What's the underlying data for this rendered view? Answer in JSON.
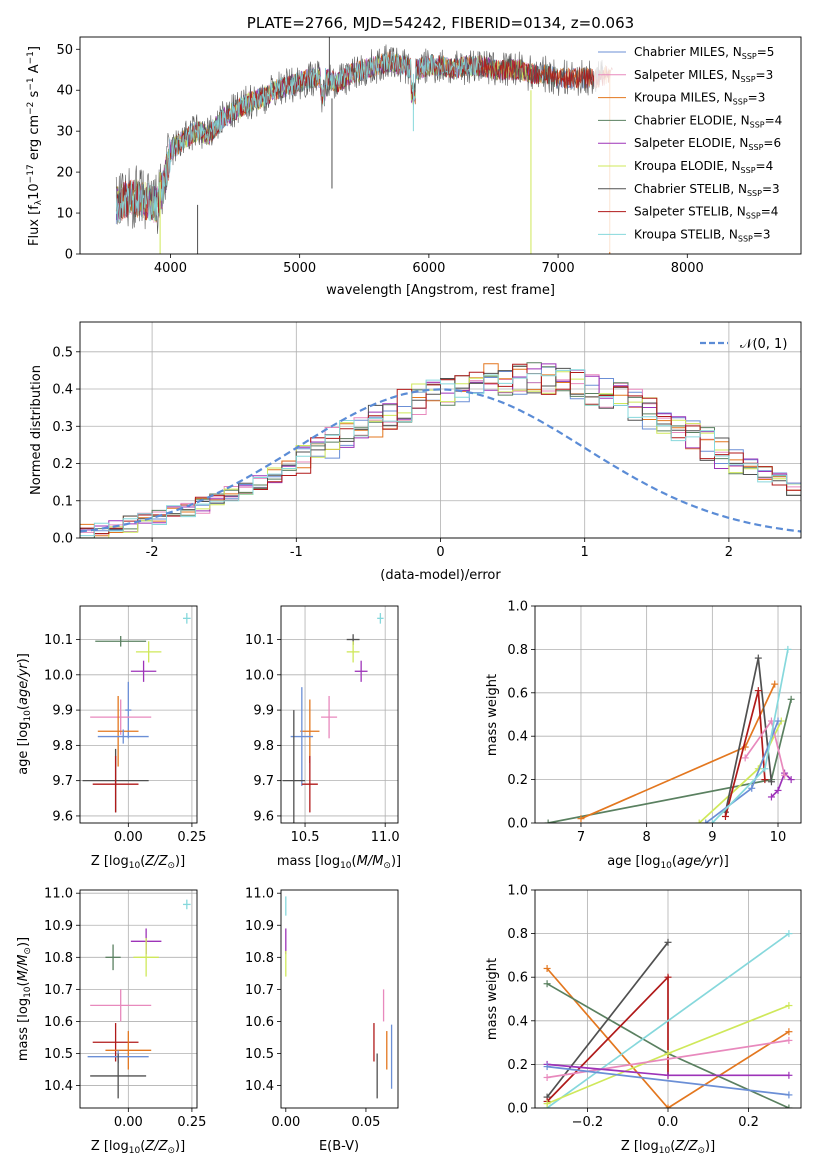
{
  "colors": {
    "chabrier_miles": "#6b8fd6",
    "salpeter_miles": "#e889bd",
    "kroupa_miles": "#e3771f",
    "chabrier_elodie": "#5a8060",
    "salpeter_elodie": "#9d33b8",
    "kroupa_elodie": "#cfe85a",
    "chabrier_stelib": "#505050",
    "salpeter_stelib": "#b01a1a",
    "kroupa_stelib": "#86d8dc",
    "normal": "#5b8cd6",
    "grid": "#b0b0b0"
  },
  "chart_data": [
    {
      "id": "spectrum",
      "type": "line",
      "title": "PLATE=2766, MJD=54242, FIBERID=0134, z=0.063",
      "xlabel": "wavelength [Angstrom, rest frame]",
      "ylabel_parts": [
        "Flux [f",
        "λ",
        "10",
        "−17",
        " erg cm",
        "−2",
        " s",
        "−1",
        " A",
        "−1",
        "]"
      ],
      "xlim": [
        3300,
        8880
      ],
      "ylim": [
        0,
        53
      ],
      "xticks": [
        4000,
        5000,
        6000,
        7000,
        8000
      ],
      "yticks": [
        0,
        10,
        20,
        30,
        40,
        50
      ],
      "grid": false,
      "legend_position": "right",
      "continuum_x": [
        3580,
        3700,
        3800,
        3900,
        3950,
        4000,
        4100,
        4200,
        4300,
        4400,
        4500,
        4600,
        4700,
        4800,
        4900,
        5000,
        5100,
        5200,
        5300,
        5400,
        5500,
        5600,
        5700,
        5800,
        5900,
        6000,
        6100,
        6200,
        6300,
        6400,
        6500,
        6600,
        6700,
        6800,
        6900,
        7000,
        7100,
        7200,
        7300,
        7400
      ],
      "continuum_y": [
        12,
        14,
        13,
        12,
        17,
        25,
        28,
        30,
        29,
        33,
        35,
        37,
        38,
        40,
        41,
        42,
        43,
        43,
        42,
        44,
        45,
        46,
        47,
        46,
        45,
        46,
        46,
        45,
        46,
        46,
        45,
        45,
        45,
        44,
        44,
        43,
        43,
        43,
        43,
        44
      ],
      "series": [
        {
          "name": "Chabrier MILES",
          "nssp": "5",
          "color_key": "chabrier_miles"
        },
        {
          "name": "Salpeter MILES",
          "nssp": "3",
          "color_key": "salpeter_miles"
        },
        {
          "name": "Kroupa MILES",
          "nssp": "3",
          "color_key": "kroupa_miles"
        },
        {
          "name": "Chabrier ELODIE",
          "nssp": "4",
          "color_key": "chabrier_elodie"
        },
        {
          "name": "Salpeter ELODIE",
          "nssp": "6",
          "color_key": "salpeter_elodie"
        },
        {
          "name": "Kroupa ELODIE",
          "nssp": "4",
          "color_key": "kroupa_elodie"
        },
        {
          "name": "Chabrier STELIB",
          "nssp": "3",
          "color_key": "chabrier_stelib"
        },
        {
          "name": "Salpeter STELIB",
          "nssp": "4",
          "color_key": "salpeter_stelib"
        },
        {
          "name": "Kroupa STELIB",
          "nssp": "3",
          "color_key": "kroupa_stelib"
        }
      ]
    },
    {
      "id": "residuals",
      "type": "histogram",
      "xlabel": "(data-model)/error",
      "ylabel": "Normed distribution",
      "xlim": [
        -2.5,
        2.5
      ],
      "ylim": [
        0,
        0.58
      ],
      "xticks": [
        -2,
        -1,
        0,
        1,
        2
      ],
      "yticks": [
        0.0,
        0.1,
        0.2,
        0.3,
        0.4,
        0.5
      ],
      "grid": true,
      "legend": [
        {
          "label": "𝒩(0, 1)",
          "style": "dashed"
        }
      ],
      "legend_position": "upper right",
      "bin_edges_start": -2.5,
      "bin_width": 0.1,
      "base_density": [
        0.018,
        0.022,
        0.03,
        0.038,
        0.046,
        0.055,
        0.065,
        0.076,
        0.089,
        0.103,
        0.118,
        0.134,
        0.152,
        0.17,
        0.19,
        0.21,
        0.23,
        0.252,
        0.274,
        0.295,
        0.316,
        0.336,
        0.355,
        0.372,
        0.387,
        0.4,
        0.41,
        0.418,
        0.424,
        0.428,
        0.43,
        0.428,
        0.424,
        0.418,
        0.41,
        0.4,
        0.387,
        0.372,
        0.355,
        0.336,
        0.316,
        0.295,
        0.274,
        0.252,
        0.23,
        0.21,
        0.19,
        0.17,
        0.152,
        0.134
      ]
    },
    {
      "id": "age_vs_Z",
      "type": "errorbar",
      "xlabel": "Z [log10(Z/Z⊙)]",
      "ylabel": "age  [log10(age/yr)]",
      "xlim": [
        -0.19,
        0.27
      ],
      "ylim": [
        9.58,
        10.195
      ],
      "xticks": [
        0.0,
        0.25
      ],
      "xtick_labels": [
        "0.00",
        "0.25"
      ],
      "yticks": [
        9.6,
        9.7,
        9.8,
        9.9,
        10.0,
        10.1
      ],
      "grid": true,
      "points": [
        {
          "c": "kroupa_stelib",
          "x": 0.23,
          "y": 10.16,
          "xe": 0.015,
          "ye": 0.015
        },
        {
          "c": "chabrier_elodie",
          "x": -0.03,
          "y": 10.095,
          "xe": 0.1,
          "ye": 0.015
        },
        {
          "c": "kroupa_elodie",
          "x": 0.08,
          "y": 10.065,
          "xe": 0.05,
          "ye": 0.03
        },
        {
          "c": "salpeter_elodie",
          "x": 0.06,
          "y": 10.01,
          "xe": 0.05,
          "ye": 0.03
        },
        {
          "c": "chabrier_miles",
          "x": 0.0,
          "y": 9.9,
          "xe": 0.012,
          "ye": 0.08
        },
        {
          "c": "salpeter_miles",
          "x": -0.03,
          "y": 9.88,
          "xe": 0.12,
          "ye": 0.05
        },
        {
          "c": "kroupa_miles",
          "x": -0.04,
          "y": 9.84,
          "xe": 0.08,
          "ye": 0.1
        },
        {
          "c": "chabrier_miles",
          "x": -0.02,
          "y": 9.825,
          "xe": 0.1,
          "ye": 0.02
        },
        {
          "c": "chabrier_stelib",
          "x": -0.05,
          "y": 9.7,
          "xe": 0.13,
          "ye": 0.09
        },
        {
          "c": "salpeter_stelib",
          "x": -0.05,
          "y": 9.69,
          "xe": 0.09,
          "ye": 0.08
        }
      ]
    },
    {
      "id": "age_vs_mass",
      "type": "errorbar",
      "xlabel": "mass [log10(M/M⊙)]",
      "xlim": [
        10.35,
        11.08
      ],
      "ylim": [
        9.58,
        10.195
      ],
      "xticks": [
        10.5,
        11.0
      ],
      "xtick_labels": [
        "10.5",
        "11.0"
      ],
      "yticks": [
        9.6,
        9.7,
        9.8,
        9.9,
        10.0,
        10.1
      ],
      "grid": true,
      "points": [
        {
          "c": "kroupa_stelib",
          "x": 10.97,
          "y": 10.16,
          "xe": 0.02,
          "ye": 0.015
        },
        {
          "c": "chabrier_stelib",
          "x": 10.8,
          "y": 10.1,
          "xe": 0.04,
          "ye": 0.015
        },
        {
          "c": "kroupa_elodie",
          "x": 10.8,
          "y": 10.065,
          "xe": 0.04,
          "ye": 0.03
        },
        {
          "c": "salpeter_elodie",
          "x": 10.85,
          "y": 10.01,
          "xe": 0.04,
          "ye": 0.03
        },
        {
          "c": "salpeter_miles",
          "x": 10.65,
          "y": 9.88,
          "xe": 0.05,
          "ye": 0.06
        },
        {
          "c": "kroupa_miles",
          "x": 10.53,
          "y": 9.84,
          "xe": 0.06,
          "ye": 0.09
        },
        {
          "c": "chabrier_miles",
          "x": 10.48,
          "y": 9.825,
          "xe": 0.07,
          "ye": 0.14
        },
        {
          "c": "chabrier_stelib",
          "x": 10.43,
          "y": 9.7,
          "xe": 0.07,
          "ye": 0.2
        },
        {
          "c": "salpeter_stelib",
          "x": 10.53,
          "y": 9.69,
          "xe": 0.05,
          "ye": 0.08
        }
      ]
    },
    {
      "id": "massweight_vs_age",
      "type": "line",
      "xlabel": "age  [log10(age/yr)]",
      "ylabel": "mass weight",
      "xlim": [
        6.3,
        10.35
      ],
      "ylim": [
        0,
        1
      ],
      "xticks": [
        7,
        8,
        9,
        10
      ],
      "yticks": [
        0.0,
        0.2,
        0.4,
        0.6,
        0.8,
        1.0
      ],
      "grid": true,
      "lines": [
        {
          "c": "chabrier_elodie",
          "x": [
            6.5,
            9.9,
            10.2
          ],
          "y": [
            0.0,
            0.2,
            0.57
          ]
        },
        {
          "c": "kroupa_miles",
          "x": [
            7.0,
            9.5,
            9.95
          ],
          "y": [
            0.02,
            0.35,
            0.64
          ]
        },
        {
          "c": "kroupa_elodie",
          "x": [
            8.8,
            9.7,
            10.05
          ],
          "y": [
            0.0,
            0.25,
            0.47
          ]
        },
        {
          "c": "chabrier_stelib",
          "x": [
            9.2,
            9.7,
            9.9
          ],
          "y": [
            0.05,
            0.76,
            0.19
          ]
        },
        {
          "c": "salpeter_stelib",
          "x": [
            9.2,
            9.7,
            9.8
          ],
          "y": [
            0.03,
            0.61,
            0.2
          ]
        },
        {
          "c": "salpeter_elodie",
          "x": [
            9.9,
            10.0,
            10.1,
            10.2
          ],
          "y": [
            0.12,
            0.15,
            0.23,
            0.2
          ]
        },
        {
          "c": "salpeter_miles",
          "x": [
            9.5,
            9.9,
            10.1
          ],
          "y": [
            0.3,
            0.47,
            0.22
          ]
        },
        {
          "c": "chabrier_miles",
          "x": [
            8.9,
            9.6,
            10.0
          ],
          "y": [
            0.0,
            0.16,
            0.47
          ]
        },
        {
          "c": "kroupa_stelib",
          "x": [
            9.0,
            9.8,
            10.15
          ],
          "y": [
            0.0,
            0.25,
            0.8
          ]
        }
      ]
    },
    {
      "id": "mass_vs_Z",
      "type": "errorbar",
      "xlabel": "Z [log10(Z/Z⊙)]",
      "ylabel": "mass [log10(M/M⊙)]",
      "xlim": [
        -0.19,
        0.27
      ],
      "ylim": [
        10.33,
        11.01
      ],
      "xticks": [
        0.0,
        0.25
      ],
      "xtick_labels": [
        "0.00",
        "0.25"
      ],
      "yticks": [
        10.4,
        10.5,
        10.6,
        10.7,
        10.8,
        10.9,
        11.0
      ],
      "grid": true,
      "points": [
        {
          "c": "kroupa_stelib",
          "x": 0.23,
          "y": 10.965,
          "xe": 0.015,
          "ye": 0.015
        },
        {
          "c": "salpeter_elodie",
          "x": 0.07,
          "y": 10.85,
          "xe": 0.06,
          "ye": 0.04
        },
        {
          "c": "chabrier_elodie",
          "x": -0.06,
          "y": 10.8,
          "xe": 0.03,
          "ye": 0.04
        },
        {
          "c": "kroupa_elodie",
          "x": 0.07,
          "y": 10.8,
          "xe": 0.05,
          "ye": 0.06
        },
        {
          "c": "salpeter_miles",
          "x": -0.03,
          "y": 10.65,
          "xe": 0.12,
          "ye": 0.05
        },
        {
          "c": "salpeter_stelib",
          "x": -0.05,
          "y": 10.535,
          "xe": 0.09,
          "ye": 0.06
        },
        {
          "c": "kroupa_miles",
          "x": 0.0,
          "y": 10.51,
          "xe": 0.09,
          "ye": 0.06
        },
        {
          "c": "chabrier_miles",
          "x": -0.04,
          "y": 10.49,
          "xe": 0.12,
          "ye": 0.02
        },
        {
          "c": "chabrier_stelib",
          "x": -0.04,
          "y": 10.43,
          "xe": 0.11,
          "ye": 0.07
        }
      ]
    },
    {
      "id": "mass_vs_ebv",
      "type": "errorbar",
      "xlabel": "E(B-V)",
      "xlim": [
        -0.003,
        0.07
      ],
      "ylim": [
        10.33,
        11.01
      ],
      "xticks": [
        0.0,
        0.05
      ],
      "xtick_labels": [
        "0.00",
        "0.05"
      ],
      "yticks": [
        10.4,
        10.5,
        10.6,
        10.7,
        10.8,
        10.9,
        11.0
      ],
      "grid": false,
      "points": [
        {
          "c": "kroupa_stelib",
          "x": 0.0,
          "y": 10.96,
          "xe": 0.0,
          "ye": 0.03
        },
        {
          "c": "salpeter_elodie",
          "x": 0.0,
          "y": 10.85,
          "xe": 0.0,
          "ye": 0.04
        },
        {
          "c": "kroupa_elodie",
          "x": 0.0,
          "y": 10.78,
          "xe": 0.0,
          "ye": 0.04
        },
        {
          "c": "salpeter_miles",
          "x": 0.061,
          "y": 10.65,
          "xe": 0.0,
          "ye": 0.05
        },
        {
          "c": "salpeter_stelib",
          "x": 0.055,
          "y": 10.535,
          "xe": 0.0,
          "ye": 0.06
        },
        {
          "c": "kroupa_miles",
          "x": 0.063,
          "y": 10.51,
          "xe": 0.0,
          "ye": 0.06
        },
        {
          "c": "chabrier_miles",
          "x": 0.066,
          "y": 10.49,
          "xe": 0.0,
          "ye": 0.1
        },
        {
          "c": "chabrier_stelib",
          "x": 0.057,
          "y": 10.43,
          "xe": 0.0,
          "ye": 0.07
        }
      ]
    },
    {
      "id": "massweight_vs_Z",
      "type": "line",
      "xlabel": "Z [log10(Z/Z⊙)]",
      "ylabel": "mass weight",
      "xlim": [
        -0.33,
        0.33
      ],
      "ylim": [
        0,
        1
      ],
      "xticks": [
        -0.2,
        0.0,
        0.2
      ],
      "xtick_labels": [
        "−0.2",
        "0.0",
        "0.2"
      ],
      "yticks": [
        0.0,
        0.2,
        0.4,
        0.6,
        0.8,
        1.0
      ],
      "grid": true,
      "lines": [
        {
          "c": "kroupa_miles",
          "x": [
            -0.3,
            0.0,
            0.3
          ],
          "y": [
            0.64,
            0.0,
            0.35
          ]
        },
        {
          "c": "chabrier_elodie",
          "x": [
            -0.3,
            0.0,
            0.3
          ],
          "y": [
            0.57,
            0.25,
            0.0
          ]
        },
        {
          "c": "chabrier_stelib",
          "x": [
            -0.3,
            0.0
          ],
          "y": [
            0.05,
            0.76
          ]
        },
        {
          "c": "salpeter_stelib",
          "x": [
            -0.3,
            0.0,
            0.0
          ],
          "y": [
            0.03,
            0.6,
            0.15
          ]
        },
        {
          "c": "kroupa_stelib",
          "x": [
            -0.3,
            0.3
          ],
          "y": [
            0.0,
            0.8
          ]
        },
        {
          "c": "kroupa_elodie",
          "x": [
            -0.3,
            0.0,
            0.3
          ],
          "y": [
            0.02,
            0.25,
            0.47
          ]
        },
        {
          "c": "salpeter_miles",
          "x": [
            -0.3,
            0.3
          ],
          "y": [
            0.14,
            0.31
          ]
        },
        {
          "c": "salpeter_elodie",
          "x": [
            -0.3,
            0.0,
            0.3
          ],
          "y": [
            0.2,
            0.15,
            0.15
          ]
        },
        {
          "c": "chabrier_miles",
          "x": [
            -0.3,
            0.3
          ],
          "y": [
            0.19,
            0.06
          ]
        }
      ]
    }
  ]
}
